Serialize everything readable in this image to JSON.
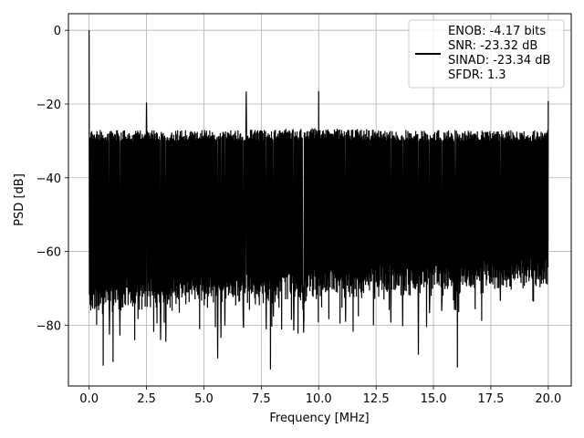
{
  "chart_data": {
    "type": "line",
    "title": "",
    "xlabel": "Frequency [MHz]",
    "ylabel": "PSD [dB]",
    "xlim": [
      -0.9,
      21.0
    ],
    "ylim": [
      -96.5,
      4.5
    ],
    "x_ticks": [
      0.0,
      2.5,
      5.0,
      7.5,
      10.0,
      12.5,
      15.0,
      17.5,
      20.0
    ],
    "x_tick_labels": [
      "0.0",
      "2.5",
      "5.0",
      "7.5",
      "10.0",
      "12.5",
      "15.0",
      "17.5",
      "20.0"
    ],
    "y_ticks": [
      0,
      -20,
      -40,
      -60,
      -80
    ],
    "y_tick_labels": [
      "0",
      "−20",
      "−40",
      "−60",
      "−80"
    ],
    "grid": true,
    "legend_position": "upper right",
    "series": [
      {
        "color": "#000000",
        "x_range_mhz": [
          0.0,
          20.0
        ],
        "noise_floor_upper_db": [
          -25,
          -29
        ],
        "noise_floor_lower_db": [
          -72,
          -65
        ],
        "peaks": [
          {
            "x": 0.0,
            "y": 0.0
          },
          {
            "x": 2.5,
            "y": -19.6
          },
          {
            "x": 6.85,
            "y": -16.6
          },
          {
            "x": 10.0,
            "y": -16.5
          },
          {
            "x": 20.0,
            "y": -19.2
          }
        ],
        "dips": [
          {
            "x": 0.62,
            "y": -91.0
          },
          {
            "x": 1.05,
            "y": -90.0
          },
          {
            "x": 5.6,
            "y": -89.0
          },
          {
            "x": 7.9,
            "y": -92.0
          },
          {
            "x": 14.35,
            "y": -88.0
          },
          {
            "x": 16.05,
            "y": -91.5
          }
        ]
      }
    ],
    "legend_lines": [
      "ENOB: -4.17 bits",
      "SNR: -23.32 dB",
      "SINAD: -23.34 dB",
      "SFDR: 1.3"
    ]
  }
}
